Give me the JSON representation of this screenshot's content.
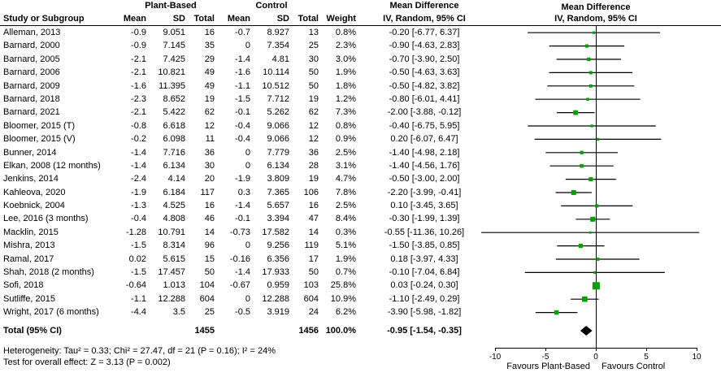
{
  "header": {
    "study_col": "Study or Subgroup",
    "group_plant": "Plant-Based",
    "group_control": "Control",
    "mean": "Mean",
    "sd": "SD",
    "total": "Total",
    "weight": "Weight",
    "md_title": "Mean Difference",
    "md_subtitle": "IV, Random, 95% CI"
  },
  "chart_data": {
    "type": "forest",
    "effect_measure": "Mean Difference",
    "method": "IV, Random, 95% CI",
    "marker_color": "#00A000",
    "diamond_color": "#000000",
    "axis": {
      "min": -10,
      "max": 10,
      "ticks": [
        -10,
        -5,
        0,
        5,
        10
      ],
      "favours_left": "Favours Plant-Based",
      "favours_right": "Favours Control"
    },
    "studies": [
      {
        "label": "Alleman, 2013",
        "pb": [
          "-0.9",
          "9.051",
          "16"
        ],
        "ctrl": [
          "-0.7",
          "8.927",
          "13"
        ],
        "weight": "0.8%",
        "md_ci": "-0.20 [-6.77, 6.37]",
        "est": -0.2,
        "lo": -6.77,
        "hi": 6.37,
        "w": 0.8
      },
      {
        "label": "Barnard, 2000",
        "pb": [
          "-0.9",
          "7.145",
          "35"
        ],
        "ctrl": [
          "0",
          "7.354",
          "25"
        ],
        "weight": "2.3%",
        "md_ci": "-0.90 [-4.63, 2.83]",
        "est": -0.9,
        "lo": -4.63,
        "hi": 2.83,
        "w": 2.3
      },
      {
        "label": "Barnard, 2005",
        "pb": [
          "-2.1",
          "7.425",
          "29"
        ],
        "ctrl": [
          "-1.4",
          "4.81",
          "30"
        ],
        "weight": "3.0%",
        "md_ci": "-0.70 [-3.90, 2.50]",
        "est": -0.7,
        "lo": -3.9,
        "hi": 2.5,
        "w": 3.0
      },
      {
        "label": "Barnard, 2006",
        "pb": [
          "-2.1",
          "10.821",
          "49"
        ],
        "ctrl": [
          "-1.6",
          "10.114",
          "50"
        ],
        "weight": "1.9%",
        "md_ci": "-0.50 [-4.63, 3.63]",
        "est": -0.5,
        "lo": -4.63,
        "hi": 3.63,
        "w": 1.9
      },
      {
        "label": "Barnard, 2009",
        "pb": [
          "-1.6",
          "11.395",
          "49"
        ],
        "ctrl": [
          "-1.1",
          "10.512",
          "50"
        ],
        "weight": "1.8%",
        "md_ci": "-0.50 [-4.82, 3.82]",
        "est": -0.5,
        "lo": -4.82,
        "hi": 3.82,
        "w": 1.8
      },
      {
        "label": "Barnard, 2018",
        "pb": [
          "-2.3",
          "8.652",
          "19"
        ],
        "ctrl": [
          "-1.5",
          "7.712",
          "19"
        ],
        "weight": "1.2%",
        "md_ci": "-0.80 [-6.01, 4.41]",
        "est": -0.8,
        "lo": -6.01,
        "hi": 4.41,
        "w": 1.2
      },
      {
        "label": "Barnard, 2021",
        "pb": [
          "-2.1",
          "5.422",
          "62"
        ],
        "ctrl": [
          "-0.1",
          "5.262",
          "62"
        ],
        "weight": "7.3%",
        "md_ci": "-2.00 [-3.88, -0.12]",
        "est": -2.0,
        "lo": -3.88,
        "hi": -0.12,
        "w": 7.3
      },
      {
        "label": "Bloomer, 2015 (T)",
        "pb": [
          "-0.8",
          "6.618",
          "12"
        ],
        "ctrl": [
          "-0.4",
          "9.066",
          "12"
        ],
        "weight": "0.8%",
        "md_ci": "-0.40 [-6.75, 5.95]",
        "est": -0.4,
        "lo": -6.75,
        "hi": 5.95,
        "w": 0.8
      },
      {
        "label": "Bloomer, 2015 (V)",
        "pb": [
          "-0.2",
          "6.098",
          "11"
        ],
        "ctrl": [
          "-0.4",
          "9.066",
          "12"
        ],
        "weight": "0.9%",
        "md_ci": "0.20 [-6.07, 6.47]",
        "est": 0.2,
        "lo": -6.07,
        "hi": 6.47,
        "w": 0.9
      },
      {
        "label": "Bunner, 2014",
        "pb": [
          "-1.4",
          "7.716",
          "36"
        ],
        "ctrl": [
          "0",
          "7.779",
          "36"
        ],
        "weight": "2.5%",
        "md_ci": "-1.40 [-4.98, 2.18]",
        "est": -1.4,
        "lo": -4.98,
        "hi": 2.18,
        "w": 2.5
      },
      {
        "label": "Elkan, 2008 (12 months)",
        "pb": [
          "-1.4",
          "6.134",
          "30"
        ],
        "ctrl": [
          "0",
          "6.134",
          "28"
        ],
        "weight": "3.1%",
        "md_ci": "-1.40 [-4.56, 1.76]",
        "est": -1.4,
        "lo": -4.56,
        "hi": 1.76,
        "w": 3.1
      },
      {
        "label": "Jenkins, 2014",
        "pb": [
          "-2.4",
          "4.14",
          "20"
        ],
        "ctrl": [
          "-1.9",
          "3.809",
          "19"
        ],
        "weight": "4.7%",
        "md_ci": "-0.50 [-3.00, 2.00]",
        "est": -0.5,
        "lo": -3.0,
        "hi": 2.0,
        "w": 4.7
      },
      {
        "label": "Kahleova, 2020",
        "pb": [
          "-1.9",
          "6.184",
          "117"
        ],
        "ctrl": [
          "0.3",
          "7.365",
          "106"
        ],
        "weight": "7.8%",
        "md_ci": "-2.20 [-3.99, -0.41]",
        "est": -2.2,
        "lo": -3.99,
        "hi": -0.41,
        "w": 7.8
      },
      {
        "label": "Koebnick, 2004",
        "pb": [
          "-1.3",
          "4.525",
          "16"
        ],
        "ctrl": [
          "-1.4",
          "5.657",
          "16"
        ],
        "weight": "2.5%",
        "md_ci": "0.10 [-3.45, 3.65]",
        "est": 0.1,
        "lo": -3.45,
        "hi": 3.65,
        "w": 2.5
      },
      {
        "label": "Lee, 2016 (3 months)",
        "pb": [
          "-0.4",
          "4.808",
          "46"
        ],
        "ctrl": [
          "-0.1",
          "3.394",
          "47"
        ],
        "weight": "8.4%",
        "md_ci": "-0.30 [-1.99, 1.39]",
        "est": -0.3,
        "lo": -1.99,
        "hi": 1.39,
        "w": 8.4
      },
      {
        "label": "Macklin, 2015",
        "pb": [
          "-1.28",
          "10.791",
          "14"
        ],
        "ctrl": [
          "-0.73",
          "17.582",
          "14"
        ],
        "weight": "0.3%",
        "md_ci": "-0.55 [-11.36, 10.26]",
        "est": -0.55,
        "lo": -11.36,
        "hi": 10.26,
        "w": 0.3
      },
      {
        "label": "Mishra, 2013",
        "pb": [
          "-1.5",
          "8.314",
          "96"
        ],
        "ctrl": [
          "0",
          "9.256",
          "119"
        ],
        "weight": "5.1%",
        "md_ci": "-1.50 [-3.85, 0.85]",
        "est": -1.5,
        "lo": -3.85,
        "hi": 0.85,
        "w": 5.1
      },
      {
        "label": "Ramal, 2017",
        "pb": [
          "0.02",
          "5.615",
          "15"
        ],
        "ctrl": [
          "-0.16",
          "6.356",
          "17"
        ],
        "weight": "1.9%",
        "md_ci": "0.18 [-3.97, 4.33]",
        "est": 0.18,
        "lo": -3.97,
        "hi": 4.33,
        "w": 1.9
      },
      {
        "label": "Shah, 2018 (2 months)",
        "pb": [
          "-1.5",
          "17.457",
          "50"
        ],
        "ctrl": [
          "-1.4",
          "17.933",
          "50"
        ],
        "weight": "0.7%",
        "md_ci": "-0.10 [-7.04, 6.84]",
        "est": -0.1,
        "lo": -7.04,
        "hi": 6.84,
        "w": 0.7
      },
      {
        "label": "Sofi, 2018",
        "pb": [
          "-0.64",
          "1.013",
          "104"
        ],
        "ctrl": [
          "-0.67",
          "0.959",
          "103"
        ],
        "weight": "25.8%",
        "md_ci": "0.03 [-0.24, 0.30]",
        "est": 0.03,
        "lo": -0.24,
        "hi": 0.3,
        "w": 25.8
      },
      {
        "label": "Sutliffe, 2015",
        "pb": [
          "-1.1",
          "12.288",
          "604"
        ],
        "ctrl": [
          "0",
          "12.288",
          "604"
        ],
        "weight": "10.9%",
        "md_ci": "-1.10 [-2.49, 0.29]",
        "est": -1.1,
        "lo": -2.49,
        "hi": 0.29,
        "w": 10.9
      },
      {
        "label": "Wright, 2017 (6 months)",
        "pb": [
          "-4.4",
          "3.5",
          "25"
        ],
        "ctrl": [
          "-0.5",
          "3.919",
          "24"
        ],
        "weight": "6.2%",
        "md_ci": "-3.90 [-5.98, -1.82]",
        "est": -3.9,
        "lo": -5.98,
        "hi": -1.82,
        "w": 6.2
      }
    ],
    "total": {
      "label": "Total (95% CI)",
      "pb_total": "1455",
      "ctrl_total": "1456",
      "weight": "100.0%",
      "md_ci": "-0.95 [-1.54, -0.35]",
      "est": -0.95,
      "lo": -1.54,
      "hi": -0.35
    },
    "heterogeneity": "Heterogeneity: Tau² = 0.33; Chi² = 27.47, df = 21 (P = 0.16); I² = 24%",
    "overall_effect": "Test for overall effect: Z = 3.13 (P = 0.002)"
  }
}
